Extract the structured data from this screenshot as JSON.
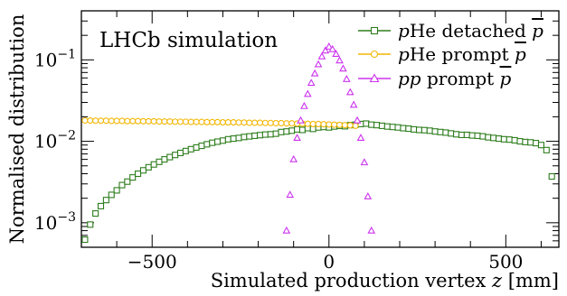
{
  "chart_data": {
    "type": "scatter",
    "xlabel_text": "Simulated production vertex ",
    "xlabel_var": "z",
    "xlabel_unit": " [mm]",
    "ylabel": "Normalised distribution",
    "annotation": "LHCb simulation",
    "xlim": [
      -700,
      650
    ],
    "ylim": [
      0.0005,
      0.4
    ],
    "yscale": "log",
    "x_ticks": [
      -500,
      0,
      500
    ],
    "x_tick_labels": [
      "−500",
      "0",
      "500"
    ],
    "y_ticks": [
      0.001,
      0.01,
      0.1
    ],
    "y_tick_labels": [
      {
        "base": "10",
        "exp": "−3"
      },
      {
        "base": "10",
        "exp": "−2"
      },
      {
        "base": "10",
        "exp": "−1"
      }
    ],
    "legend_position": "top-right",
    "series": [
      {
        "id": "phe_detached",
        "legend_prefix": "p",
        "legend_text": "He detached ",
        "legend_pbar": "p",
        "color": "#2e7d1e",
        "marker": "square",
        "x": [
          -690,
          -675,
          -660,
          -645,
          -630,
          -615,
          -600,
          -585,
          -570,
          -555,
          -540,
          -525,
          -510,
          -495,
          -480,
          -465,
          -450,
          -435,
          -420,
          -405,
          -390,
          -375,
          -360,
          -345,
          -330,
          -315,
          -300,
          -285,
          -270,
          -255,
          -240,
          -225,
          -210,
          -195,
          -180,
          -165,
          -150,
          -135,
          -120,
          -105,
          -90,
          -75,
          -60,
          -45,
          -30,
          -15,
          0,
          15,
          30,
          45,
          60,
          75,
          90,
          105,
          120,
          135,
          150,
          165,
          180,
          195,
          210,
          225,
          240,
          255,
          270,
          285,
          300,
          315,
          330,
          345,
          360,
          375,
          390,
          405,
          420,
          435,
          450,
          465,
          480,
          495,
          510,
          525,
          540,
          555,
          570,
          585,
          600,
          615,
          630
        ],
        "y": [
          0.00062,
          0.00095,
          0.0013,
          0.0016,
          0.0019,
          0.0022,
          0.0025,
          0.0029,
          0.0032,
          0.0036,
          0.004,
          0.0044,
          0.0048,
          0.0052,
          0.0056,
          0.006,
          0.0064,
          0.0068,
          0.0072,
          0.0076,
          0.008,
          0.0084,
          0.0088,
          0.0092,
          0.0096,
          0.0099,
          0.0102,
          0.0106,
          0.0108,
          0.011,
          0.0113,
          0.0115,
          0.0117,
          0.0119,
          0.0121,
          0.0122,
          0.0124,
          0.013,
          0.0132,
          0.0135,
          0.014,
          0.0138,
          0.0145,
          0.0142,
          0.0148,
          0.015,
          0.0148,
          0.0152,
          0.0155,
          0.0153,
          0.0158,
          0.016,
          0.0163,
          0.0165,
          0.016,
          0.0158,
          0.0155,
          0.0152,
          0.015,
          0.0148,
          0.0145,
          0.0143,
          0.014,
          0.0138,
          0.0137,
          0.0135,
          0.0132,
          0.013,
          0.0128,
          0.0125,
          0.0122,
          0.012,
          0.012,
          0.0118,
          0.0117,
          0.0115,
          0.0112,
          0.011,
          0.0108,
          0.0106,
          0.0105,
          0.0103,
          0.01,
          0.0098,
          0.0097,
          0.0095,
          0.009,
          0.0078,
          0.0037
        ]
      },
      {
        "id": "phe_prompt",
        "legend_prefix": "p",
        "legend_text": "He prompt ",
        "legend_pbar": "p",
        "color": "#f2b705",
        "marker": "circle",
        "x": [
          -690,
          -675,
          -660,
          -645,
          -630,
          -615,
          -600,
          -585,
          -570,
          -555,
          -540,
          -525,
          -510,
          -495,
          -480,
          -465,
          -450,
          -435,
          -420,
          -405,
          -390,
          -375,
          -360,
          -345,
          -330,
          -315,
          -300,
          -285,
          -270,
          -255,
          -240,
          -225,
          -210,
          -195,
          -180,
          -165,
          -150,
          -135,
          -120,
          -105,
          -90,
          -75,
          -60,
          -45,
          -30,
          -15,
          0,
          15,
          30,
          45,
          60,
          75
        ],
        "y": [
          0.018,
          0.018,
          0.0179,
          0.0179,
          0.0179,
          0.0178,
          0.0178,
          0.0178,
          0.0177,
          0.0177,
          0.0177,
          0.0176,
          0.0176,
          0.0176,
          0.0175,
          0.0175,
          0.0175,
          0.0174,
          0.0174,
          0.0174,
          0.0173,
          0.0173,
          0.0173,
          0.0172,
          0.0172,
          0.0172,
          0.0171,
          0.0171,
          0.0171,
          0.017,
          0.017,
          0.0169,
          0.0169,
          0.0169,
          0.0168,
          0.0168,
          0.0167,
          0.0167,
          0.0166,
          0.0166,
          0.0165,
          0.0165,
          0.0164,
          0.0163,
          0.0163,
          0.0162,
          0.0161,
          0.016,
          0.0159,
          0.0158,
          0.0157,
          0.0155
        ]
      },
      {
        "id": "pp_prompt",
        "legend_prefix": "pp",
        "legend_text": " prompt ",
        "legend_pbar": "p",
        "color": "#cc33ee",
        "marker": "triangle",
        "x": [
          -120,
          -110,
          -100,
          -90,
          -80,
          -70,
          -60,
          -50,
          -40,
          -30,
          -20,
          -10,
          0,
          10,
          20,
          30,
          40,
          50,
          60,
          70,
          80,
          90,
          100,
          110,
          120
        ],
        "y": [
          0.0008,
          0.0022,
          0.006,
          0.011,
          0.018,
          0.027,
          0.038,
          0.052,
          0.068,
          0.088,
          0.11,
          0.13,
          0.145,
          0.135,
          0.118,
          0.098,
          0.078,
          0.058,
          0.04,
          0.028,
          0.018,
          0.011,
          0.0055,
          0.0021,
          0.0008
        ]
      }
    ]
  }
}
